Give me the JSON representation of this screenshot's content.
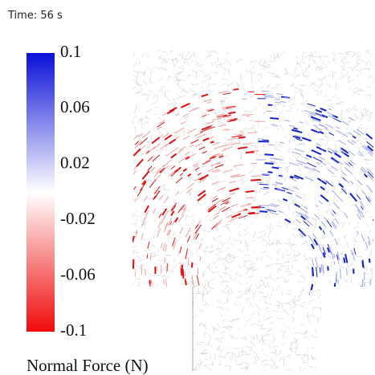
{
  "time_label": "Time: 56 s",
  "colorbar": {
    "title": "Normal Force (N)",
    "range": [
      -0.1,
      0.1
    ],
    "ticks": [
      0.1,
      0.06,
      0.02,
      -0.02,
      -0.06,
      -0.1
    ]
  }
}
